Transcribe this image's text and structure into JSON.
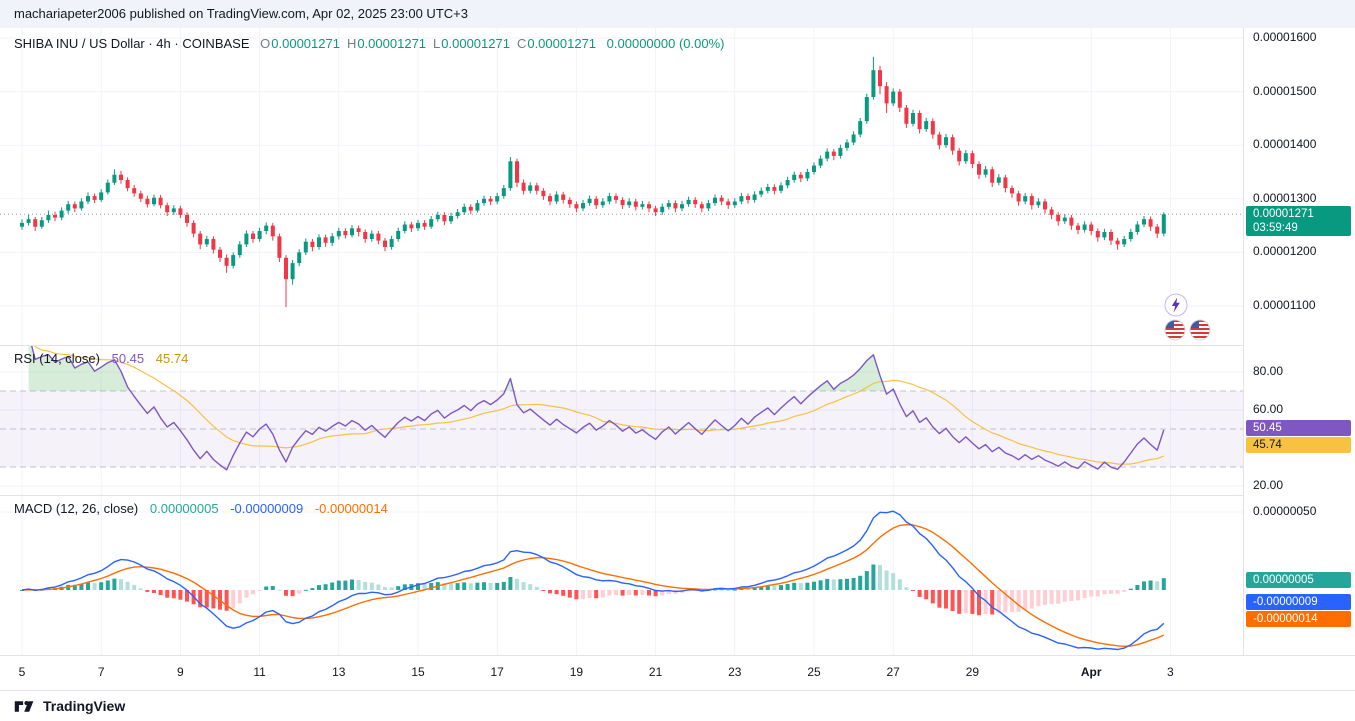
{
  "header": {
    "published_line": "machariapeter2006 published on TradingView.com, Apr 02, 2025 23:00 UTC+3"
  },
  "main": {
    "legend": {
      "title": "SHIBA INU / US Dollar · 4h · COINBASE",
      "items": [
        {
          "k": "O",
          "v": "0.00001271"
        },
        {
          "k": "H",
          "v": "0.00001271"
        },
        {
          "k": "L",
          "v": "0.00001271"
        },
        {
          "k": "C",
          "v": "0.00001271"
        }
      ],
      "change": "0.00000000 (0.00%)"
    },
    "price_badge": {
      "price": "0.00001271",
      "countdown": "03:59:49"
    }
  },
  "rsi": {
    "legend_title": "RSI (14, close)",
    "value": "50.45",
    "ma_value": "45.74"
  },
  "macd": {
    "legend_title": "MACD (12, 26, close)",
    "hist_value": "0.00000005",
    "macd_value": "-0.00000009",
    "signal_value": "-0.00000014"
  },
  "time_axis": {
    "labels": [
      {
        "text": "5",
        "i": 0
      },
      {
        "text": "7",
        "i": 12
      },
      {
        "text": "9",
        "i": 24
      },
      {
        "text": "11",
        "i": 36
      },
      {
        "text": "13",
        "i": 48
      },
      {
        "text": "15",
        "i": 60
      },
      {
        "text": "17",
        "i": 72
      },
      {
        "text": "19",
        "i": 84
      },
      {
        "text": "21",
        "i": 96
      },
      {
        "text": "23",
        "i": 108
      },
      {
        "text": "25",
        "i": 120
      },
      {
        "text": "27",
        "i": 132
      },
      {
        "text": "29",
        "i": 144
      },
      {
        "text": "Apr",
        "i": 162,
        "bold": true
      },
      {
        "text": "3",
        "i": 174
      }
    ]
  },
  "footer": {
    "brand": "TradingView"
  },
  "icons": {
    "reactions": [
      "lightning-bolt",
      "us-flag",
      "us-flag"
    ],
    "footer_logo": "tradingview-logo"
  },
  "colors": {
    "up": "#089981",
    "down": "#F23645",
    "grid": "#F0F3FA",
    "rsi": "#7E57C2",
    "rsi_ma": "#F5C242",
    "macd_line": "#2962FF",
    "macd_signal": "#FF6D00",
    "hist_up": "#26A69A",
    "hist_up_fade": "#B2DFDB",
    "hist_down": "#FF5252",
    "hist_down_fade": "#FFCDD2"
  },
  "chart_data": {
    "type": "candlestick",
    "title": "SHIBA INU / US Dollar · 4h · COINBASE",
    "symbol": "SHIBA INU / US Dollar",
    "interval": "4h",
    "exchange": "COINBASE",
    "price_unit": 1e-08,
    "candles_per_day": 6,
    "start_label": "Mar 5",
    "last_price": 1271,
    "ohlc_current": {
      "o": 1.271e-05,
      "h": 1.271e-05,
      "l": 1.271e-05,
      "c": 1.271e-05,
      "change": 0.0,
      "change_pct": 0.0
    },
    "y_axis": {
      "main_ticks": [
        {
          "label": "0.00001600",
          "value": 1600
        },
        {
          "label": "0.00001500",
          "value": 1500
        },
        {
          "label": "0.00001400",
          "value": 1400
        },
        {
          "label": "0.00001300",
          "value": 1300
        },
        {
          "label": "0.00001200",
          "value": 1200
        },
        {
          "label": "0.00001100",
          "value": 1100
        }
      ],
      "rsi_ticks": [
        {
          "label": "80.00",
          "value": 80
        },
        {
          "label": "60.00",
          "value": 60
        },
        {
          "label": "20.00",
          "value": 20
        }
      ],
      "macd_ticks": [
        {
          "label": "0.00000050",
          "value": 50
        }
      ],
      "rsi_band": [
        30,
        70
      ],
      "rsi_dashed_levels": [
        70,
        50,
        30
      ]
    },
    "indicators": [
      {
        "name": "RSI",
        "period": 14,
        "source": "close",
        "value": 50.45,
        "ma_value": 45.74
      },
      {
        "name": "MACD",
        "fast": 12,
        "slow": 26,
        "signal": 9,
        "source": "close",
        "histogram": 5e-08,
        "macd": -9e-08,
        "signal_value": -1.4e-07
      }
    ],
    "candles_ohlc": [
      [
        1248,
        1262,
        1242,
        1255
      ],
      [
        1255,
        1270,
        1250,
        1262
      ],
      [
        1262,
        1266,
        1240,
        1248
      ],
      [
        1248,
        1266,
        1244,
        1260
      ],
      [
        1260,
        1278,
        1255,
        1270
      ],
      [
        1270,
        1276,
        1258,
        1265
      ],
      [
        1265,
        1284,
        1260,
        1278
      ],
      [
        1278,
        1296,
        1272,
        1290
      ],
      [
        1290,
        1295,
        1275,
        1282
      ],
      [
        1282,
        1301,
        1278,
        1295
      ],
      [
        1295,
        1312,
        1290,
        1305
      ],
      [
        1305,
        1310,
        1292,
        1298
      ],
      [
        1298,
        1318,
        1294,
        1312
      ],
      [
        1312,
        1336,
        1308,
        1330
      ],
      [
        1330,
        1355,
        1326,
        1345
      ],
      [
        1345,
        1352,
        1328,
        1335
      ],
      [
        1335,
        1340,
        1314,
        1320
      ],
      [
        1320,
        1326,
        1304,
        1310
      ],
      [
        1310,
        1315,
        1294,
        1300
      ],
      [
        1300,
        1306,
        1284,
        1290
      ],
      [
        1290,
        1308,
        1286,
        1302
      ],
      [
        1302,
        1307,
        1282,
        1288
      ],
      [
        1288,
        1293,
        1268,
        1275
      ],
      [
        1275,
        1288,
        1270,
        1282
      ],
      [
        1282,
        1287,
        1264,
        1270
      ],
      [
        1270,
        1275,
        1248,
        1255
      ],
      [
        1255,
        1260,
        1228,
        1235
      ],
      [
        1235,
        1240,
        1206,
        1215
      ],
      [
        1215,
        1231,
        1210,
        1225
      ],
      [
        1225,
        1230,
        1198,
        1205
      ],
      [
        1205,
        1210,
        1182,
        1190
      ],
      [
        1190,
        1196,
        1162,
        1175
      ],
      [
        1175,
        1200,
        1170,
        1195
      ],
      [
        1195,
        1221,
        1190,
        1215
      ],
      [
        1215,
        1241,
        1210,
        1235
      ],
      [
        1235,
        1240,
        1218,
        1225
      ],
      [
        1225,
        1246,
        1220,
        1240
      ],
      [
        1240,
        1256,
        1234,
        1250
      ],
      [
        1250,
        1255,
        1222,
        1230
      ],
      [
        1230,
        1235,
        1182,
        1190
      ],
      [
        1190,
        1195,
        1098,
        1150
      ],
      [
        1150,
        1186,
        1140,
        1180
      ],
      [
        1180,
        1206,
        1174,
        1200
      ],
      [
        1200,
        1226,
        1195,
        1220
      ],
      [
        1220,
        1225,
        1202,
        1210
      ],
      [
        1210,
        1234,
        1205,
        1228
      ],
      [
        1228,
        1233,
        1210,
        1218
      ],
      [
        1218,
        1236,
        1212,
        1230
      ],
      [
        1230,
        1246,
        1224,
        1240
      ],
      [
        1240,
        1245,
        1226,
        1232
      ],
      [
        1232,
        1251,
        1228,
        1245
      ],
      [
        1245,
        1250,
        1230,
        1238
      ],
      [
        1238,
        1243,
        1218,
        1225
      ],
      [
        1225,
        1241,
        1220,
        1235
      ],
      [
        1235,
        1240,
        1215,
        1222
      ],
      [
        1222,
        1227,
        1202,
        1210
      ],
      [
        1210,
        1231,
        1205,
        1225
      ],
      [
        1225,
        1246,
        1220,
        1240
      ],
      [
        1240,
        1258,
        1235,
        1252
      ],
      [
        1252,
        1257,
        1238,
        1245
      ],
      [
        1245,
        1261,
        1240,
        1255
      ],
      [
        1255,
        1260,
        1242,
        1248
      ],
      [
        1248,
        1268,
        1244,
        1262
      ],
      [
        1262,
        1276,
        1257,
        1270
      ],
      [
        1270,
        1275,
        1251,
        1258
      ],
      [
        1258,
        1274,
        1253,
        1268
      ],
      [
        1268,
        1281,
        1263,
        1275
      ],
      [
        1275,
        1291,
        1270,
        1285
      ],
      [
        1285,
        1290,
        1271,
        1278
      ],
      [
        1278,
        1298,
        1274,
        1292
      ],
      [
        1292,
        1306,
        1287,
        1300
      ],
      [
        1300,
        1305,
        1288,
        1295
      ],
      [
        1295,
        1311,
        1290,
        1305
      ],
      [
        1305,
        1326,
        1300,
        1320
      ],
      [
        1320,
        1378,
        1315,
        1370
      ],
      [
        1370,
        1375,
        1322,
        1330
      ],
      [
        1330,
        1336,
        1308,
        1315
      ],
      [
        1315,
        1331,
        1310,
        1325
      ],
      [
        1325,
        1330,
        1308,
        1315
      ],
      [
        1315,
        1320,
        1298,
        1305
      ],
      [
        1305,
        1310,
        1288,
        1295
      ],
      [
        1295,
        1314,
        1290,
        1308
      ],
      [
        1308,
        1313,
        1291,
        1298
      ],
      [
        1298,
        1303,
        1283,
        1290
      ],
      [
        1290,
        1295,
        1275,
        1282
      ],
      [
        1282,
        1298,
        1277,
        1292
      ],
      [
        1292,
        1306,
        1287,
        1300
      ],
      [
        1300,
        1305,
        1281,
        1288
      ],
      [
        1288,
        1301,
        1283,
        1295
      ],
      [
        1295,
        1311,
        1290,
        1305
      ],
      [
        1305,
        1310,
        1291,
        1298
      ],
      [
        1298,
        1303,
        1281,
        1288
      ],
      [
        1288,
        1301,
        1283,
        1295
      ],
      [
        1295,
        1300,
        1278,
        1285
      ],
      [
        1285,
        1296,
        1280,
        1290
      ],
      [
        1290,
        1295,
        1275,
        1282
      ],
      [
        1282,
        1287,
        1268,
        1275
      ],
      [
        1275,
        1291,
        1270,
        1285
      ],
      [
        1285,
        1298,
        1280,
        1292
      ],
      [
        1292,
        1297,
        1275,
        1282
      ],
      [
        1282,
        1296,
        1277,
        1290
      ],
      [
        1290,
        1304,
        1285,
        1298
      ],
      [
        1298,
        1303,
        1283,
        1290
      ],
      [
        1290,
        1295,
        1275,
        1282
      ],
      [
        1282,
        1298,
        1277,
        1292
      ],
      [
        1292,
        1308,
        1287,
        1302
      ],
      [
        1302,
        1307,
        1288,
        1295
      ],
      [
        1295,
        1300,
        1281,
        1288
      ],
      [
        1288,
        1301,
        1283,
        1295
      ],
      [
        1295,
        1311,
        1290,
        1305
      ],
      [
        1305,
        1310,
        1291,
        1298
      ],
      [
        1298,
        1314,
        1293,
        1308
      ],
      [
        1308,
        1321,
        1303,
        1315
      ],
      [
        1315,
        1328,
        1310,
        1322
      ],
      [
        1322,
        1327,
        1308,
        1315
      ],
      [
        1315,
        1331,
        1310,
        1325
      ],
      [
        1325,
        1341,
        1320,
        1335
      ],
      [
        1335,
        1351,
        1330,
        1345
      ],
      [
        1345,
        1350,
        1331,
        1338
      ],
      [
        1338,
        1356,
        1333,
        1350
      ],
      [
        1350,
        1368,
        1345,
        1362
      ],
      [
        1362,
        1381,
        1357,
        1375
      ],
      [
        1375,
        1394,
        1370,
        1388
      ],
      [
        1388,
        1393,
        1372,
        1380
      ],
      [
        1380,
        1401,
        1375,
        1395
      ],
      [
        1395,
        1411,
        1390,
        1405
      ],
      [
        1405,
        1426,
        1400,
        1420
      ],
      [
        1420,
        1451,
        1415,
        1445
      ],
      [
        1445,
        1496,
        1440,
        1490
      ],
      [
        1490,
        1565,
        1485,
        1540
      ],
      [
        1540,
        1548,
        1495,
        1510
      ],
      [
        1510,
        1518,
        1460,
        1478
      ],
      [
        1478,
        1506,
        1473,
        1500
      ],
      [
        1500,
        1505,
        1462,
        1470
      ],
      [
        1470,
        1475,
        1432,
        1440
      ],
      [
        1440,
        1466,
        1435,
        1460
      ],
      [
        1460,
        1465,
        1422,
        1430
      ],
      [
        1430,
        1451,
        1425,
        1445
      ],
      [
        1445,
        1450,
        1412,
        1420
      ],
      [
        1420,
        1425,
        1392,
        1400
      ],
      [
        1400,
        1421,
        1395,
        1415
      ],
      [
        1415,
        1420,
        1382,
        1390
      ],
      [
        1390,
        1395,
        1362,
        1370
      ],
      [
        1370,
        1391,
        1365,
        1385
      ],
      [
        1385,
        1390,
        1357,
        1365
      ],
      [
        1365,
        1370,
        1337,
        1345
      ],
      [
        1345,
        1361,
        1340,
        1355
      ],
      [
        1355,
        1360,
        1322,
        1330
      ],
      [
        1330,
        1346,
        1325,
        1340
      ],
      [
        1340,
        1345,
        1312,
        1320
      ],
      [
        1320,
        1325,
        1302,
        1310
      ],
      [
        1310,
        1315,
        1287,
        1295
      ],
      [
        1295,
        1311,
        1290,
        1305
      ],
      [
        1305,
        1310,
        1280,
        1288
      ],
      [
        1288,
        1301,
        1283,
        1295
      ],
      [
        1295,
        1300,
        1272,
        1280
      ],
      [
        1280,
        1285,
        1262,
        1270
      ],
      [
        1270,
        1275,
        1250,
        1258
      ],
      [
        1258,
        1271,
        1253,
        1265
      ],
      [
        1265,
        1270,
        1242,
        1250
      ],
      [
        1250,
        1255,
        1234,
        1242
      ],
      [
        1242,
        1258,
        1237,
        1252
      ],
      [
        1252,
        1257,
        1232,
        1240
      ],
      [
        1240,
        1245,
        1220,
        1228
      ],
      [
        1228,
        1244,
        1223,
        1238
      ],
      [
        1238,
        1243,
        1214,
        1222
      ],
      [
        1222,
        1227,
        1205,
        1215
      ],
      [
        1215,
        1231,
        1210,
        1225
      ],
      [
        1225,
        1244,
        1220,
        1238
      ],
      [
        1238,
        1258,
        1233,
        1252
      ],
      [
        1252,
        1268,
        1247,
        1262
      ],
      [
        1262,
        1267,
        1240,
        1248
      ],
      [
        1248,
        1253,
        1227,
        1235
      ],
      [
        1235,
        1275,
        1230,
        1271
      ]
    ]
  }
}
